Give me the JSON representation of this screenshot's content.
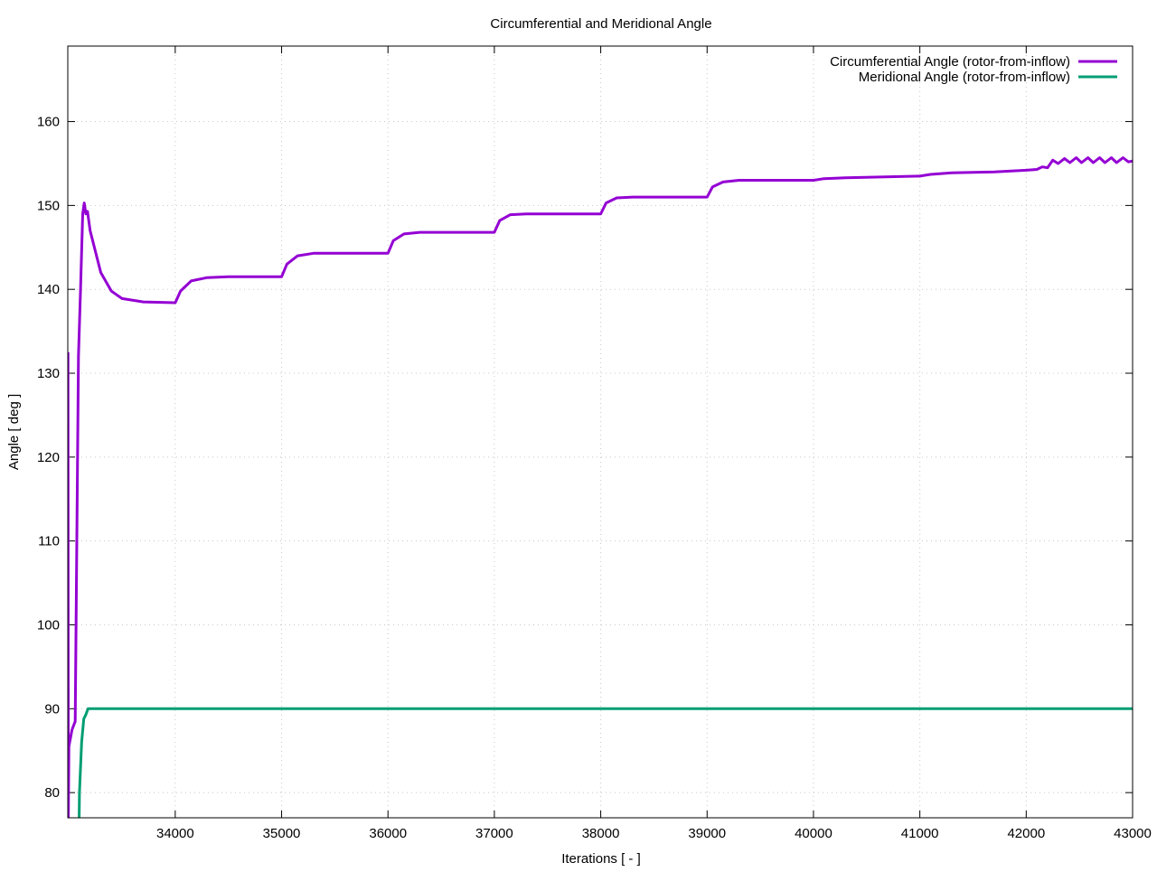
{
  "chart_data": {
    "type": "line",
    "title": "Circumferential and Meridional Angle",
    "xlabel": "Iterations [ - ]",
    "ylabel": "Angle [ deg ]",
    "xlim": [
      32990,
      43000
    ],
    "ylim": [
      77,
      169
    ],
    "xticks": [
      34000,
      35000,
      36000,
      37000,
      38000,
      39000,
      40000,
      41000,
      42000,
      43000
    ],
    "yticks": [
      80,
      90,
      100,
      110,
      120,
      130,
      140,
      150,
      160
    ],
    "grid": true,
    "legend_position": "top-right",
    "series": [
      {
        "name": "Circumferential Angle (rotor-from-inflow)",
        "color": "#9400d3",
        "points": [
          [
            32992,
            132.5
          ],
          [
            32995,
            77
          ],
          [
            33000,
            85.5
          ],
          [
            33030,
            87.5
          ],
          [
            33060,
            88.5
          ],
          [
            33090,
            132
          ],
          [
            33110,
            140
          ],
          [
            33130,
            149
          ],
          [
            33145,
            150.3
          ],
          [
            33160,
            149
          ],
          [
            33175,
            149.3
          ],
          [
            33200,
            147
          ],
          [
            33300,
            142
          ],
          [
            33400,
            139.8
          ],
          [
            33500,
            138.9
          ],
          [
            33700,
            138.5
          ],
          [
            34000,
            138.4
          ],
          [
            34050,
            139.8
          ],
          [
            34150,
            141
          ],
          [
            34300,
            141.4
          ],
          [
            34500,
            141.5
          ],
          [
            35000,
            141.5
          ],
          [
            35050,
            143
          ],
          [
            35150,
            144
          ],
          [
            35300,
            144.3
          ],
          [
            36000,
            144.3
          ],
          [
            36050,
            145.8
          ],
          [
            36150,
            146.6
          ],
          [
            36300,
            146.8
          ],
          [
            37000,
            146.8
          ],
          [
            37050,
            148.2
          ],
          [
            37150,
            148.9
          ],
          [
            37300,
            149
          ],
          [
            38000,
            149
          ],
          [
            38050,
            150.3
          ],
          [
            38150,
            150.9
          ],
          [
            38300,
            151
          ],
          [
            39000,
            151
          ],
          [
            39050,
            152.2
          ],
          [
            39150,
            152.8
          ],
          [
            39300,
            153
          ],
          [
            40000,
            153
          ],
          [
            40100,
            153.2
          ],
          [
            40300,
            153.3
          ],
          [
            41000,
            153.5
          ],
          [
            41100,
            153.7
          ],
          [
            41300,
            153.9
          ],
          [
            41700,
            154
          ],
          [
            42000,
            154.2
          ],
          [
            42100,
            154.3
          ],
          [
            42150,
            154.6
          ],
          [
            42200,
            154.5
          ],
          [
            42250,
            155.4
          ],
          [
            42300,
            155.0
          ],
          [
            42360,
            155.6
          ],
          [
            42410,
            155.1
          ],
          [
            42470,
            155.7
          ],
          [
            42520,
            155.1
          ],
          [
            42580,
            155.7
          ],
          [
            42630,
            155.1
          ],
          [
            42690,
            155.7
          ],
          [
            42740,
            155.1
          ],
          [
            42800,
            155.7
          ],
          [
            42850,
            155.1
          ],
          [
            42910,
            155.7
          ],
          [
            42960,
            155.2
          ],
          [
            43000,
            155.3
          ]
        ]
      },
      {
        "name": "Meridional Angle (rotor-from-inflow)",
        "color": "#009e73",
        "points": [
          [
            33090,
            70
          ],
          [
            33100,
            80
          ],
          [
            33120,
            86
          ],
          [
            33140,
            88.8
          ],
          [
            33160,
            89.3
          ],
          [
            33180,
            90
          ],
          [
            43000,
            90
          ]
        ]
      }
    ]
  }
}
